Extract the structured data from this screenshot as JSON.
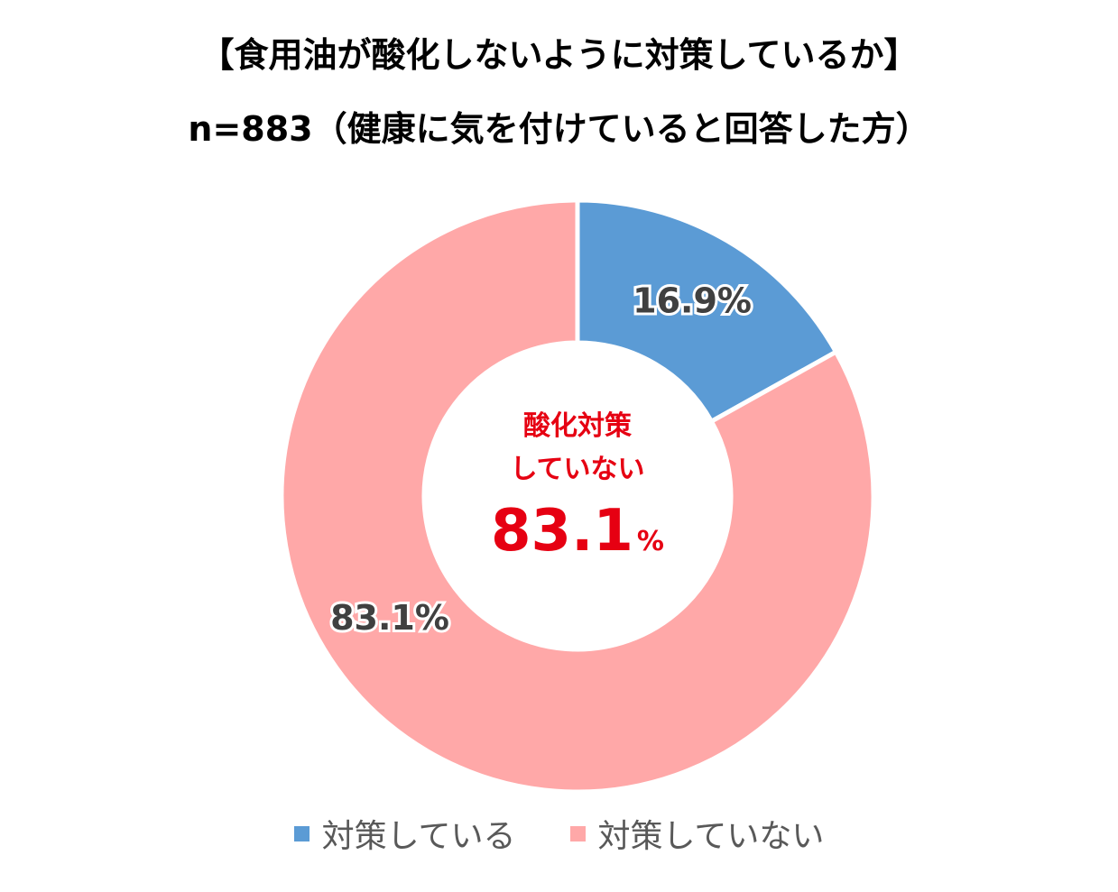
{
  "chart_data": {
    "type": "pie",
    "subtype": "donut",
    "title": "【食用油が酸化しないように対策しているか】",
    "subtitle": "n=883（健康に気を付けていると回答した方）",
    "categories": [
      "対策している",
      "対策していない"
    ],
    "values": [
      16.9,
      83.1
    ],
    "data_labels": [
      "16.9%",
      "83.1%"
    ],
    "colors": [
      "#5b9bd5",
      "#ffa8a8"
    ],
    "legend_position": "bottom",
    "center_annotation": {
      "line1": "酸化対策",
      "line2": "していない",
      "value": "83.1",
      "unit": "%",
      "color": "#e60012"
    }
  }
}
